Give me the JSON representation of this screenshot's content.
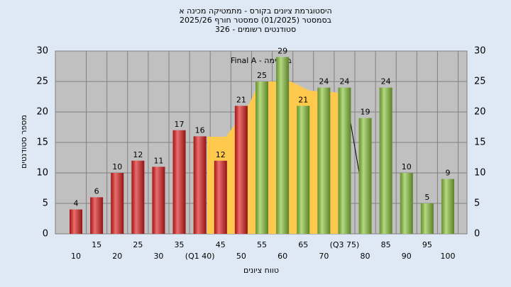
{
  "chart_data": {
    "type": "bar",
    "title": [
      "היסטוגרמת ציונים בקורס - מתמטיקה מכינה א",
      "בסמסטר (01/2025) סמסטר חורף 2025/26",
      "סטודנטים רשומים - 326"
    ],
    "annotation": "במשימה - Final A",
    "x_label": "טווח ציונים",
    "y_label": "מספר סטודנטים",
    "categories": [
      "10",
      "15",
      "20",
      "25",
      "30",
      "35",
      "(Q1 40)",
      "45",
      "50",
      "55",
      "60",
      "65",
      "70",
      "(Q3 75)",
      "80",
      "85",
      "90",
      "95",
      "100"
    ],
    "values": [
      4,
      6,
      10,
      12,
      11,
      17,
      16,
      12,
      21,
      25,
      29,
      21,
      24,
      24,
      19,
      24,
      10,
      5,
      9
    ],
    "colors": [
      "#e02020",
      "#e02020",
      "#e02020",
      "#e02020",
      "#e02020",
      "#e02020",
      "#e02020",
      "#e02020",
      "#e02020",
      "#8cc63f",
      "#8cc63f",
      "#8cc63f",
      "#8cc63f",
      "#8cc63f",
      "#8cc63f",
      "#8cc63f",
      "#8cc63f",
      "#8cc63f",
      "#8cc63f"
    ],
    "ylim": [
      0,
      30
    ],
    "yticks": [
      0,
      5,
      10,
      15,
      20,
      25,
      30
    ],
    "grid": true
  }
}
